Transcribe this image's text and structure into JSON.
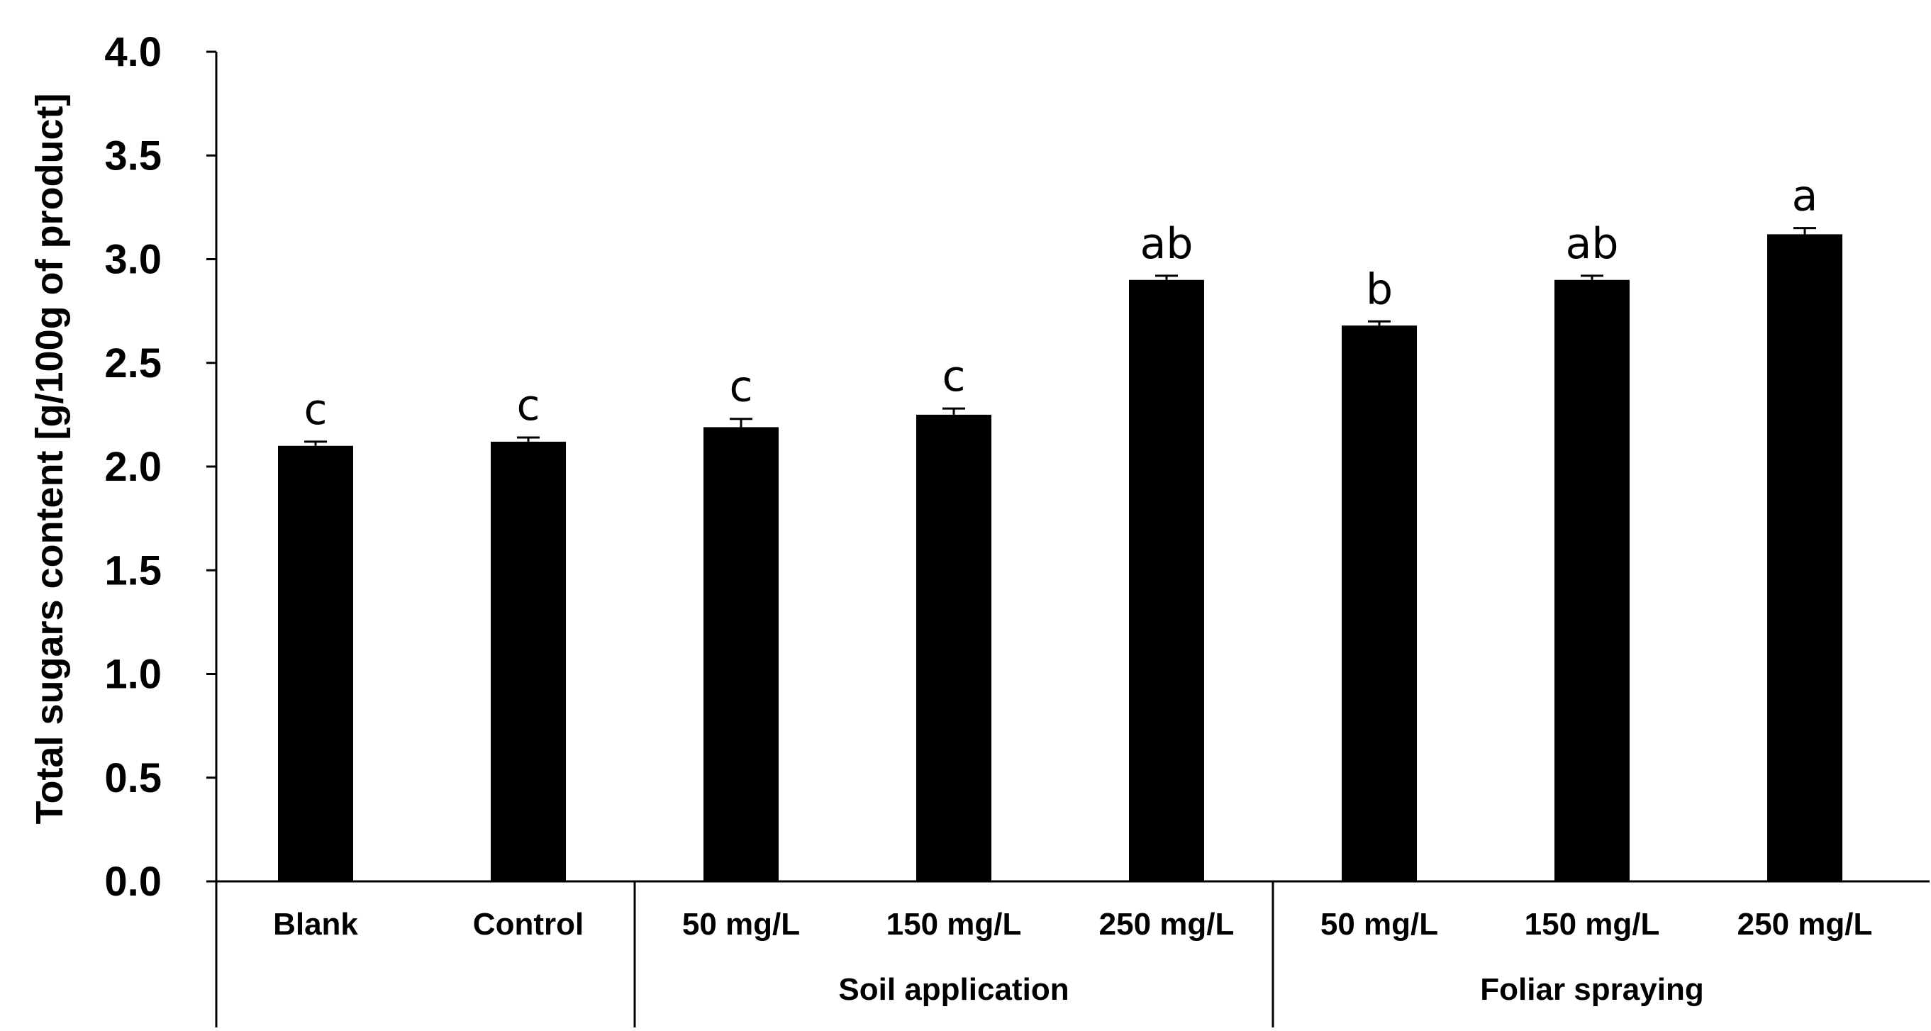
{
  "chart_data": {
    "type": "bar",
    "title": "",
    "xlabel": "",
    "ylabel": "Total sugars content [g/100g of product]",
    "ylim": [
      0,
      4.0
    ],
    "yticks": [
      0.0,
      0.5,
      1.0,
      1.5,
      2.0,
      2.5,
      3.0,
      3.5,
      4.0
    ],
    "ytick_labels": [
      "0.0",
      "0.5",
      "1.0",
      "1.5",
      "2.0",
      "2.5",
      "3.0",
      "3.5",
      "4.0"
    ],
    "grid": false,
    "legend": "none",
    "categories": [
      "Blank",
      "Control",
      "50 mg/L",
      "150 mg/L",
      "250 mg/L",
      "50 mg/L",
      "150 mg/L",
      "250 mg/L"
    ],
    "groups": [
      {
        "label": "",
        "start": 0,
        "end": 1
      },
      {
        "label": "Soil application",
        "start": 2,
        "end": 4
      },
      {
        "label": "Foliar spraying",
        "start": 5,
        "end": 7
      }
    ],
    "series": [
      {
        "name": "Total sugars content",
        "color": "#000000",
        "values": [
          2.1,
          2.12,
          2.19,
          2.25,
          2.9,
          2.68,
          2.9,
          3.12
        ],
        "errors": [
          0.02,
          0.02,
          0.04,
          0.03,
          0.02,
          0.02,
          0.02,
          0.03
        ],
        "significance": [
          "c",
          "c",
          "c",
          "c",
          "ab",
          "b",
          "ab",
          "a"
        ]
      }
    ]
  }
}
